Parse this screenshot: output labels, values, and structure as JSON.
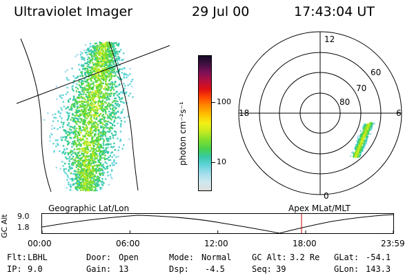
{
  "header": {
    "instrument": "Ultraviolet Imager",
    "date": "29 Jul 00",
    "time": "17:43:04 UT"
  },
  "colorbar": {
    "label": "photon cm⁻²s⁻¹",
    "ticks": [
      "100",
      "10"
    ],
    "scale": "log",
    "colors": [
      "#dddddd",
      "#cfe9ef",
      "#9fdcec",
      "#5fd4d8",
      "#38c9a6",
      "#49d24d",
      "#86e02c",
      "#c8ea1e",
      "#f2f016",
      "#ffc400",
      "#ff8a00",
      "#ff4a00",
      "#e21013",
      "#b8103d",
      "#7a1057",
      "#401040",
      "#140a26"
    ]
  },
  "polar_plot": {
    "mlt_labels": [
      "12",
      "18",
      "6",
      "0"
    ],
    "mlat_labels": [
      "60",
      "70",
      "80"
    ]
  },
  "timeline": {
    "ylabel": "GC Alt",
    "y_ticks": [
      "9.0",
      "1.8"
    ],
    "left_title": "Geographic Lat/Lon",
    "right_title": "Apex MLat/MLT",
    "x_ticks": [
      "00:00",
      "06:00",
      "12:00",
      "18:00",
      "23:59"
    ],
    "current_time_marker": "17:43",
    "marker_color": "#d00000"
  },
  "info": {
    "filter_label": "Flt:",
    "filter_value": "LBHL",
    "ip_label": "IP:",
    "ip_value": "9.0",
    "door_label": "Door:",
    "door_value": "Open",
    "gain_label": "Gain:",
    "gain_value": "13",
    "mode_label": "Mode:",
    "mode_value": "Normal",
    "dsp_label": "Dsp:",
    "dsp_value": "-4.5",
    "gcalt_label": "GC Alt:",
    "gcalt_value": "3.2 Re",
    "seq_label": "Seq:",
    "seq_value": "39",
    "glat_label": "GLat:",
    "glat_value": "-54.1",
    "glon_label": "GLon:",
    "glon_value": "143.3"
  }
}
